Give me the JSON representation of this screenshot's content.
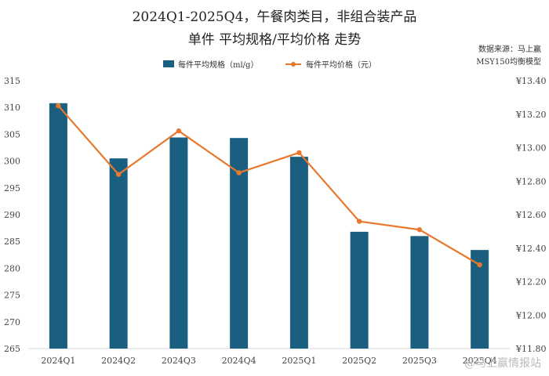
{
  "chart_data": {
    "type": "bar+line",
    "title": "2024Q1-2025Q4，午餐肉类目，非组合装产品",
    "subtitle": "单件 平均规格/平均价格 走势",
    "categories": [
      "2024Q1",
      "2024Q2",
      "2024Q3",
      "2024Q4",
      "2025Q1",
      "2025Q2",
      "2025Q3",
      "2025Q4"
    ],
    "series": [
      {
        "name": "每件平均规格（ml/g）",
        "type": "bar",
        "axis": "left",
        "values": [
          310.8,
          300.5,
          304.4,
          304.3,
          300.8,
          286.8,
          286.0,
          283.4
        ]
      },
      {
        "name": "每件平均价格（元）",
        "type": "line",
        "axis": "right",
        "values": [
          13.25,
          12.84,
          13.1,
          12.85,
          12.97,
          12.56,
          12.51,
          12.3
        ]
      }
    ],
    "y_left": {
      "min": 265,
      "max": 315,
      "step": 5,
      "ticks": [
        "265",
        "270",
        "275",
        "280",
        "285",
        "290",
        "295",
        "300",
        "305",
        "310",
        "315"
      ]
    },
    "y_right": {
      "min": 11.8,
      "max": 13.4,
      "step": 0.2,
      "ticks": [
        "¥11.80",
        "¥12.00",
        "¥12.20",
        "¥12.40",
        "¥12.60",
        "¥12.80",
        "¥13.00",
        "¥13.20",
        "¥13.40"
      ]
    },
    "legend_position": "top-center",
    "source_line1": "数据来源：马上赢",
    "source_line2": "MSY150均衡模型",
    "watermark": "@马上赢情报站"
  },
  "colors": {
    "bar": "#1b5f80",
    "line": "#e8782e",
    "axis": "#d9d9d9",
    "text": "#333333"
  }
}
